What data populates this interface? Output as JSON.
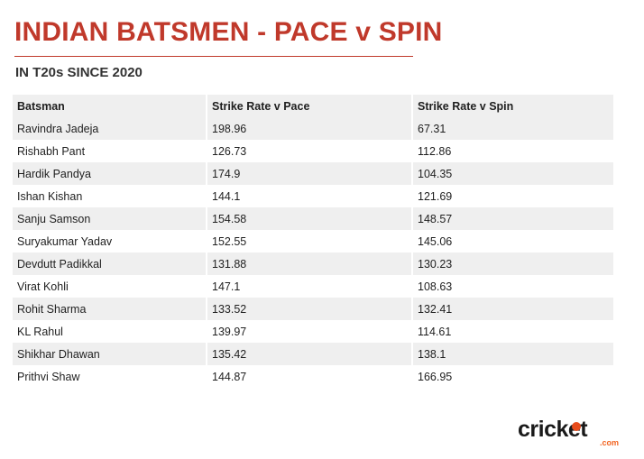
{
  "header": {
    "title": "INDIAN BATSMEN - PACE v SPIN",
    "subtitle": "IN T20s SINCE 2020"
  },
  "table": {
    "columns": [
      "Batsman",
      "Strike Rate v Pace",
      "Strike Rate v Spin"
    ],
    "rows": [
      {
        "batsman": "Ravindra Jadeja",
        "pace": "198.96",
        "spin": "67.31"
      },
      {
        "batsman": "Rishabh Pant",
        "pace": "126.73",
        "spin": "112.86"
      },
      {
        "batsman": "Hardik Pandya",
        "pace": "174.9",
        "spin": "104.35"
      },
      {
        "batsman": "Ishan Kishan",
        "pace": "144.1",
        "spin": "121.69"
      },
      {
        "batsman": "Sanju Samson",
        "pace": "154.58",
        "spin": "148.57"
      },
      {
        "batsman": "Suryakumar Yadav",
        "pace": "152.55",
        "spin": "145.06"
      },
      {
        "batsman": "Devdutt Padikkal",
        "pace": "131.88",
        "spin": "130.23"
      },
      {
        "batsman": "Virat Kohli",
        "pace": "147.1",
        "spin": "108.63"
      },
      {
        "batsman": "Rohit Sharma",
        "pace": "133.52",
        "spin": "132.41"
      },
      {
        "batsman": "KL Rahul",
        "pace": "139.97",
        "spin": "114.61"
      },
      {
        "batsman": "Shikhar Dhawan",
        "pace": "135.42",
        "spin": "138.1"
      },
      {
        "batsman": "Prithvi Shaw",
        "pace": "144.87",
        "spin": "166.95"
      }
    ]
  },
  "logo": {
    "text": "cricket",
    "suffix": ".com",
    "colors": {
      "text": "#1a1a1a",
      "accent": "#f26522",
      "ball": "#e74c1c"
    }
  }
}
